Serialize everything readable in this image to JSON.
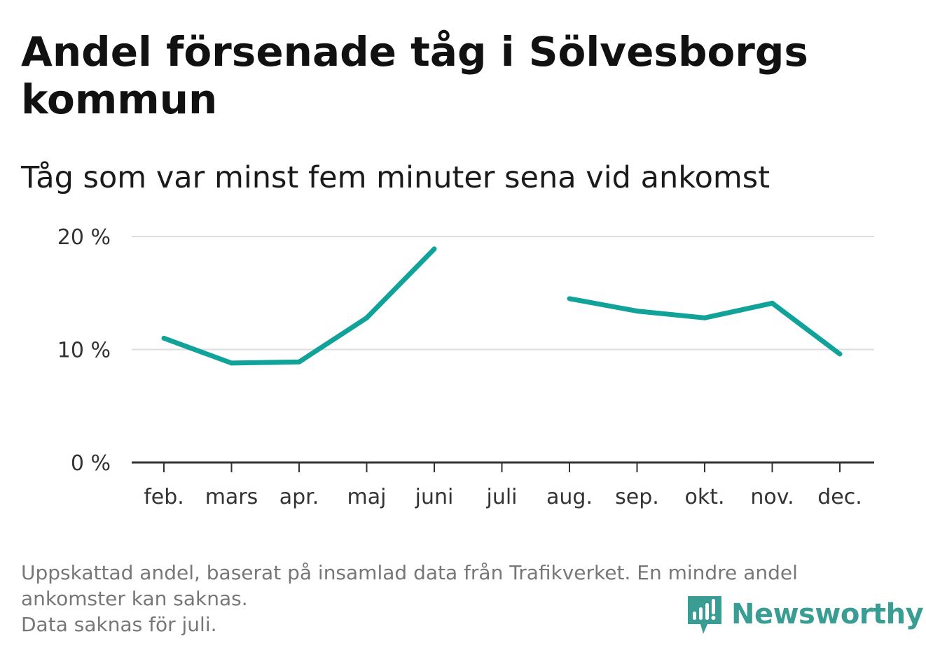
{
  "header": {
    "title": "Andel försenade tåg i Sölvesborgs kommun",
    "subtitle": "Tåg som var minst fem minuter sena vid ankomst"
  },
  "chart_data": {
    "type": "line",
    "title": "Andel försenade tåg i Sölvesborgs kommun",
    "subtitle": "Tåg som var minst fem minuter sena vid ankomst",
    "categories": [
      "feb.",
      "mars",
      "apr.",
      "maj",
      "juni",
      "juli",
      "aug.",
      "sep.",
      "okt.",
      "nov.",
      "dec."
    ],
    "series": [
      {
        "name": "Andel försenade tåg",
        "values": [
          11.0,
          8.8,
          8.9,
          12.8,
          18.9,
          null,
          14.5,
          13.4,
          12.8,
          14.1,
          9.6
        ]
      }
    ],
    "yticks": [
      0,
      10,
      20
    ],
    "ytick_labels": [
      "0 %",
      "10 %",
      "20 %"
    ],
    "ylim": [
      0,
      20
    ],
    "xlabel": "",
    "ylabel": "",
    "grid": true,
    "line_color": "#11a39a"
  },
  "footer": {
    "note_lines": [
      "Uppskattad andel, baserat på insamlad data från Trafikverket. En mindre andel",
      "ankomster kan saknas.",
      "Data saknas för juli."
    ],
    "brand": "Newsworthy",
    "brand_color": "#3a9d93"
  }
}
